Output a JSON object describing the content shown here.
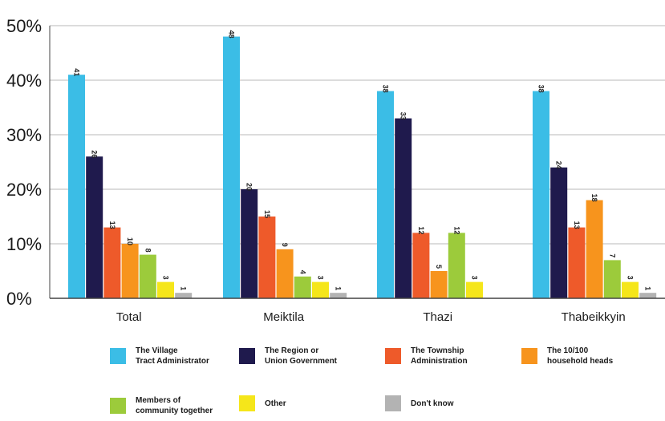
{
  "chart_data": {
    "type": "bar",
    "categories": [
      "Total",
      "Meiktila",
      "Thazi",
      "Thabeikkyin"
    ],
    "series": [
      {
        "name": "The Village\nTract Administrator",
        "color": "#3bbde6",
        "values": [
          41,
          48,
          38,
          38
        ]
      },
      {
        "name": "The Region or\nUnion Government",
        "color": "#1f1a4d",
        "values": [
          26,
          20,
          33,
          24
        ]
      },
      {
        "name": "The Township\nAdministration",
        "color": "#ee5a2a",
        "values": [
          13,
          15,
          12,
          13
        ]
      },
      {
        "name": "The 10/100\nhousehold heads",
        "color": "#f7941d",
        "values": [
          10,
          9,
          5,
          18
        ]
      },
      {
        "name": "Members of\ncommunity together",
        "color": "#9ccb3b",
        "values": [
          8,
          4,
          12,
          7
        ]
      },
      {
        "name": "Other",
        "color": "#f5e61a",
        "values": [
          3,
          3,
          3,
          3
        ]
      },
      {
        "name": "Don't know",
        "color": "#b3b3b3",
        "values": [
          1,
          1,
          0,
          1
        ]
      }
    ],
    "data_labels": [
      [
        "41",
        "48",
        "38",
        "38"
      ],
      [
        "26",
        "20",
        "33",
        "24"
      ],
      [
        "13",
        "15",
        "12",
        "13"
      ],
      [
        "10",
        "9",
        "5",
        "18"
      ],
      [
        "8",
        "4",
        "12",
        "7"
      ],
      [
        "3",
        "3",
        "3",
        "3"
      ],
      [
        "1",
        "1",
        "",
        "1"
      ]
    ],
    "yticks": [
      "0%",
      "10%",
      "20%",
      "30%",
      "40%",
      "50%"
    ],
    "ylim": [
      0,
      50
    ],
    "grid": true,
    "legend_position": "bottom"
  }
}
